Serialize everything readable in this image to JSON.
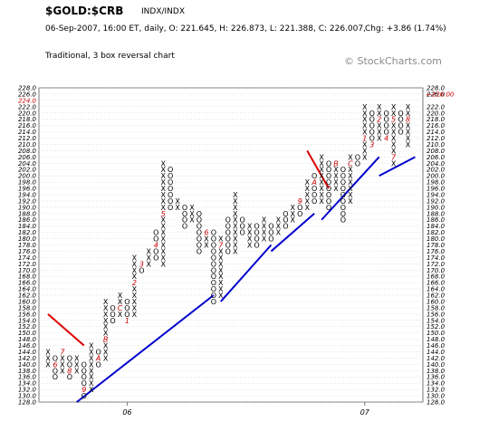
{
  "header": {
    "symbol": "$GOLD:$CRB",
    "exchange": "INDX/INDX",
    "quote_line": "06-Sep-2007, 16:00 ET, daily, O: 221.645, H: 226.873, L: 221.388, C: 226.007,",
    "change_text": "Chg: +3.86 (1.74%)",
    "chart_type": "Traditional, 3 box reversal chart",
    "copyright": "© StockCharts.com"
  },
  "colors": {
    "x_mark": "#000000",
    "o_mark": "#000000",
    "month_number": "#cc0000",
    "support_trendline": "#0000cc",
    "resistance_trendline": "#dd0000",
    "price_marker": "#cc0000",
    "grid": "#cccccc"
  },
  "chart_data": {
    "type": "point_and_figure",
    "box_size": 2,
    "reversal": 3,
    "ylim": [
      128,
      228
    ],
    "y_ticks": [
      128,
      130,
      132,
      134,
      136,
      138,
      140,
      142,
      144,
      146,
      148,
      150,
      152,
      154,
      156,
      158,
      160,
      162,
      164,
      166,
      168,
      170,
      172,
      174,
      176,
      178,
      180,
      182,
      184,
      186,
      188,
      190,
      192,
      194,
      196,
      198,
      200,
      202,
      204,
      206,
      208,
      210,
      212,
      214,
      216,
      218,
      220,
      222,
      224,
      226,
      228
    ],
    "y_tick_labels": [
      "128.0",
      "130.0",
      "132.0",
      "134.0",
      "136.0",
      "138.0",
      "140.0",
      "142.0",
      "144.0",
      "146.0",
      "148.0",
      "150.0",
      "152.0",
      "154.0",
      "156.0",
      "158.0",
      "160.0",
      "162.0",
      "164.0",
      "166.0",
      "168.0",
      "170.0",
      "172.0",
      "174.0",
      "176.0",
      "178.0",
      "180.0",
      "182.0",
      "184.0",
      "186.0",
      "188.0",
      "190.0",
      "192.0",
      "194.0",
      "196.0",
      "198.0",
      "200.0",
      "202.0",
      "204.0",
      "206.0",
      "208.0",
      "210.0",
      "212.0",
      "214.0",
      "216.0",
      "218.0",
      "220.0",
      "222.0",
      "224.0",
      "226.0",
      "228.0"
    ],
    "y_highlight_label": "224.0",
    "price_marker_label": "226.00",
    "price_marker_value": 226,
    "year_labels": [
      {
        "text": "06",
        "column": 11
      },
      {
        "text": "07",
        "column": 44
      }
    ],
    "columns": [
      {
        "type": "X",
        "low": 140,
        "high": 144,
        "month_marks": {}
      },
      {
        "type": "O",
        "low": 136,
        "high": 142,
        "month_marks": {
          "140": "6"
        }
      },
      {
        "type": "X",
        "low": 138,
        "high": 144,
        "month_marks": {
          "144": "7"
        }
      },
      {
        "type": "O",
        "low": 136,
        "high": 142,
        "month_marks": {
          "138": "8"
        }
      },
      {
        "type": "X",
        "low": 138,
        "high": 142,
        "month_marks": {}
      },
      {
        "type": "O",
        "low": 130,
        "high": 140,
        "month_marks": {
          "132": "9"
        }
      },
      {
        "type": "X",
        "low": 132,
        "high": 146,
        "month_marks": {}
      },
      {
        "type": "O",
        "low": 140,
        "high": 144,
        "month_marks": {
          "142": "A"
        }
      },
      {
        "type": "X",
        "low": 142,
        "high": 160,
        "month_marks": {
          "148": "B"
        }
      },
      {
        "type": "O",
        "low": 154,
        "high": 158,
        "month_marks": {}
      },
      {
        "type": "X",
        "low": 156,
        "high": 162,
        "month_marks": {
          "158": "C"
        }
      },
      {
        "type": "O",
        "low": 154,
        "high": 160,
        "month_marks": {
          "154": "1"
        }
      },
      {
        "type": "X",
        "low": 156,
        "high": 174,
        "month_marks": {
          "166": "2"
        }
      },
      {
        "type": "O",
        "low": 170,
        "high": 172,
        "month_marks": {
          "172": "3"
        }
      },
      {
        "type": "X",
        "low": 172,
        "high": 176,
        "month_marks": {}
      },
      {
        "type": "O",
        "low": 174,
        "high": 182,
        "month_marks": {
          "178": "4"
        }
      },
      {
        "type": "X",
        "low": 172,
        "high": 204,
        "month_marks": {
          "188": "5"
        }
      },
      {
        "type": "O",
        "low": 190,
        "high": 202,
        "month_marks": {}
      },
      {
        "type": "X",
        "low": 190,
        "high": 192,
        "month_marks": {}
      },
      {
        "type": "O",
        "low": 184,
        "high": 190,
        "month_marks": {}
      },
      {
        "type": "X",
        "low": 186,
        "high": 190,
        "month_marks": {}
      },
      {
        "type": "O",
        "low": 176,
        "high": 188,
        "month_marks": {}
      },
      {
        "type": "X",
        "low": 178,
        "high": 182,
        "month_marks": {
          "182": "6"
        }
      },
      {
        "type": "O",
        "low": 160,
        "high": 182,
        "month_marks": {}
      },
      {
        "type": "X",
        "low": 162,
        "high": 180,
        "month_marks": {
          "178": "7"
        }
      },
      {
        "type": "O",
        "low": 176,
        "high": 186,
        "month_marks": {}
      },
      {
        "type": "X",
        "low": 176,
        "high": 194,
        "month_marks": {}
      },
      {
        "type": "O",
        "low": 182,
        "high": 186,
        "month_marks": {}
      },
      {
        "type": "X",
        "low": 178,
        "high": 184,
        "month_marks": {}
      },
      {
        "type": "O",
        "low": 178,
        "high": 184,
        "month_marks": {}
      },
      {
        "type": "X",
        "low": 180,
        "high": 186,
        "month_marks": {}
      },
      {
        "type": "O",
        "low": 180,
        "high": 184,
        "month_marks": {}
      },
      {
        "type": "X",
        "low": 182,
        "high": 186,
        "month_marks": {}
      },
      {
        "type": "O",
        "low": 184,
        "high": 188,
        "month_marks": {}
      },
      {
        "type": "X",
        "low": 186,
        "high": 190,
        "month_marks": {}
      },
      {
        "type": "O",
        "low": 188,
        "high": 192,
        "month_marks": {
          "192": "9"
        }
      },
      {
        "type": "X",
        "low": 190,
        "high": 198,
        "month_marks": {}
      },
      {
        "type": "O",
        "low": 192,
        "high": 200,
        "month_marks": {
          "198": "A"
        }
      },
      {
        "type": "X",
        "low": 192,
        "high": 206,
        "month_marks": {}
      },
      {
        "type": "O",
        "low": 190,
        "high": 204,
        "month_marks": {}
      },
      {
        "type": "X",
        "low": 196,
        "high": 204,
        "month_marks": {
          "204": "B"
        }
      },
      {
        "type": "O",
        "low": 186,
        "high": 202,
        "month_marks": {}
      },
      {
        "type": "X",
        "low": 192,
        "high": 206,
        "month_marks": {
          "204": "C"
        }
      },
      {
        "type": "O",
        "low": 204,
        "high": 206,
        "month_marks": {}
      },
      {
        "type": "X",
        "low": 206,
        "high": 222,
        "month_marks": {
          "212": "1"
        }
      },
      {
        "type": "O",
        "low": 210,
        "high": 220,
        "month_marks": {
          "210": "3"
        }
      },
      {
        "type": "X",
        "low": 212,
        "high": 222,
        "month_marks": {
          "218": "2"
        }
      },
      {
        "type": "O",
        "low": 212,
        "high": 220,
        "month_marks": {
          "212": "4"
        }
      },
      {
        "type": "X",
        "low": 204,
        "high": 222,
        "month_marks": {
          "218": "5",
          "206": "7"
        }
      },
      {
        "type": "O",
        "low": 214,
        "high": 220,
        "month_marks": {}
      },
      {
        "type": "X",
        "low": 210,
        "high": 222,
        "month_marks": {
          "218": "8"
        }
      }
    ],
    "trendlines": [
      {
        "kind": "support",
        "start": {
          "column": 4,
          "value": 128
        },
        "end": {
          "column": 23,
          "value": 162
        }
      },
      {
        "kind": "support",
        "start": {
          "column": 24,
          "value": 160
        },
        "end": {
          "column": 31,
          "value": 178
        }
      },
      {
        "kind": "support",
        "start": {
          "column": 31,
          "value": 176
        },
        "end": {
          "column": 37,
          "value": 188
        }
      },
      {
        "kind": "support",
        "start": {
          "column": 38,
          "value": 186
        },
        "end": {
          "column": 46,
          "value": 206
        }
      },
      {
        "kind": "support",
        "start": {
          "column": 46,
          "value": 200
        },
        "end": {
          "column": 51,
          "value": 206
        }
      },
      {
        "kind": "resistance",
        "start": {
          "column": 0,
          "value": 156
        },
        "end": {
          "column": 5,
          "value": 146
        }
      },
      {
        "kind": "resistance",
        "start": {
          "column": 36,
          "value": 208
        },
        "end": {
          "column": 39,
          "value": 196
        }
      }
    ]
  }
}
